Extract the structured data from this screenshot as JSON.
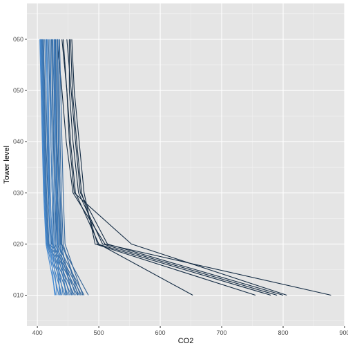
{
  "chart_data": {
    "type": "line",
    "title": "",
    "xlabel": "CO2",
    "ylabel": "Tower level",
    "xlim": [
      383,
      900
    ],
    "ylim": [
      4,
      67
    ],
    "grid": true,
    "legend": "none",
    "x_ticks": [
      400,
      500,
      600,
      700,
      800,
      900
    ],
    "x_tick_labels": [
      "400",
      "500",
      "600",
      "700",
      "800",
      "900"
    ],
    "y_ticks": [
      10,
      20,
      30,
      40,
      50,
      60
    ],
    "y_tick_labels": [
      "010",
      "020",
      "030",
      "040",
      "050",
      "060"
    ],
    "levels": [
      10,
      20,
      30,
      40,
      50,
      60
    ],
    "colors": {
      "panel": "#e5e5e5",
      "grid_major": "#ffffff",
      "grid_minor": "#f2f2f2",
      "line_low": "#4a90d9",
      "line_high": "#132b43"
    },
    "series": [
      {
        "values": [
          878,
          510,
          458,
          447,
          440,
          432
        ]
      },
      {
        "values": [
          806,
          553,
          460,
          452,
          448,
          440
        ]
      },
      {
        "values": [
          800,
          514,
          470,
          462,
          455,
          448
        ]
      },
      {
        "values": [
          790,
          506,
          467,
          458,
          452,
          452
        ]
      },
      {
        "values": [
          780,
          498,
          472,
          464,
          457,
          454
        ]
      },
      {
        "values": [
          755,
          494,
          476,
          468,
          460,
          456
        ]
      },
      {
        "values": [
          653,
          500,
          462,
          454,
          448,
          442
        ]
      },
      {
        "values": [
          483,
          438,
          435,
          432,
          431,
          430
        ]
      },
      {
        "values": [
          476,
          432,
          428,
          426,
          424,
          423
        ]
      },
      {
        "values": [
          472,
          428,
          424,
          422,
          420,
          418
        ]
      },
      {
        "values": [
          468,
          425,
          420,
          418,
          416,
          415
        ]
      },
      {
        "values": [
          465,
          423,
          418,
          416,
          414,
          412
        ]
      },
      {
        "values": [
          460,
          421,
          417,
          414,
          412,
          410
        ]
      },
      {
        "values": [
          455,
          419,
          415,
          413,
          411,
          409
        ]
      },
      {
        "values": [
          450,
          418,
          414,
          412,
          410,
          408
        ]
      },
      {
        "values": [
          445,
          417,
          413,
          411,
          409,
          407
        ]
      },
      {
        "values": [
          440,
          416,
          412,
          410,
          408,
          406
        ]
      },
      {
        "values": [
          435,
          415,
          411,
          409,
          407,
          405
        ]
      },
      {
        "values": [
          430,
          414,
          410,
          408,
          406,
          404
        ]
      },
      {
        "values": [
          470,
          440,
          437,
          435,
          434,
          433
        ]
      },
      {
        "values": [
          462,
          436,
          433,
          431,
          430,
          429
        ]
      },
      {
        "values": [
          458,
          434,
          432,
          430,
          428,
          427
        ]
      },
      {
        "values": [
          452,
          432,
          430,
          428,
          427,
          425
        ]
      },
      {
        "values": [
          448,
          430,
          428,
          427,
          425,
          424
        ]
      },
      {
        "values": [
          442,
          428,
          426,
          424,
          422,
          421
        ]
      },
      {
        "values": [
          438,
          426,
          424,
          422,
          421,
          420
        ]
      },
      {
        "values": [
          474,
          445,
          442,
          440,
          438,
          436
        ]
      },
      {
        "values": [
          466,
          442,
          439,
          437,
          436,
          435
        ]
      },
      {
        "values": [
          456,
          439,
          437,
          435,
          434,
          433
        ]
      },
      {
        "values": [
          446,
          437,
          435,
          434,
          433,
          432
        ]
      },
      {
        "values": [
          436,
          433,
          431,
          430,
          429,
          428
        ]
      },
      {
        "values": [
          428,
          421,
          419,
          417,
          416,
          414
        ]
      },
      {
        "values": [
          432,
          424,
          421,
          419,
          418,
          416
        ]
      }
    ]
  }
}
